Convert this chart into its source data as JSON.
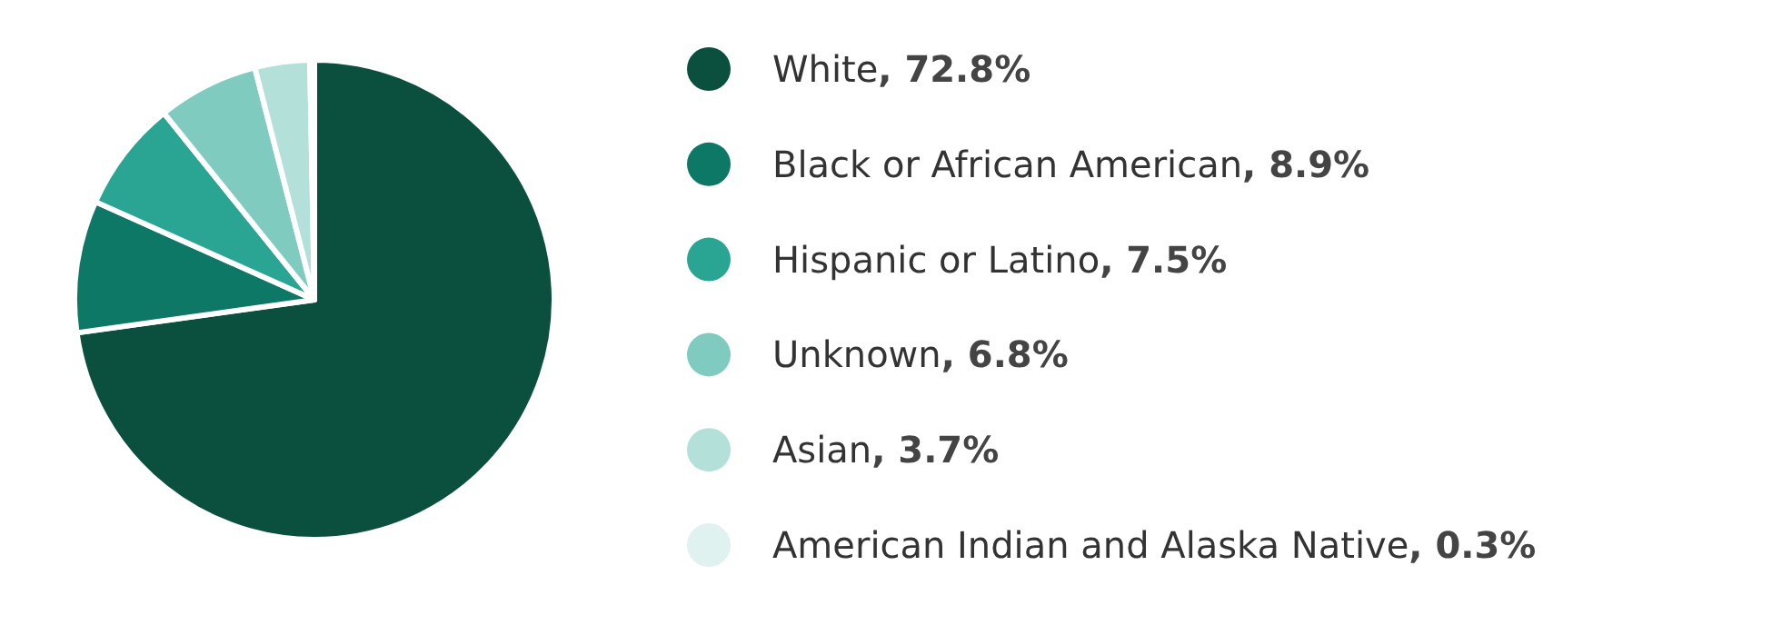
{
  "chart_data": {
    "type": "pie",
    "categories": [
      "White",
      "Black or African American",
      "Hispanic or Latino",
      "Unknown",
      "Asian",
      "American Indian and Alaska Native"
    ],
    "values": [
      72.8,
      8.9,
      7.5,
      6.8,
      3.7,
      0.3
    ],
    "value_labels": [
      ", 72.8%",
      ", 8.9%",
      ", 7.5%",
      ", 6.8%",
      ", 3.7%",
      ", 0.3%"
    ],
    "colors": [
      "#0b4f3f",
      "#0e7866",
      "#2aa593",
      "#80cbbf",
      "#b4e0da",
      "#e0f2ef"
    ],
    "legend": "right"
  }
}
